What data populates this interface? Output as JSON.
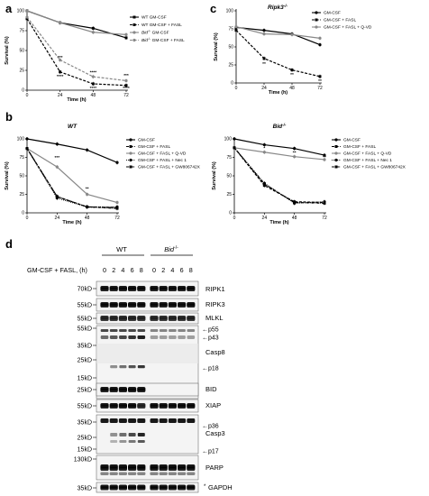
{
  "panels": {
    "a": {
      "letter": "a"
    },
    "b": {
      "letter": "b",
      "left_title": "WT",
      "right_title": "Bid"
    },
    "c": {
      "letter": "c",
      "title": "Ripk3"
    },
    "d": {
      "letter": "d"
    }
  },
  "chart_data": [
    {
      "panel": "a",
      "type": "line",
      "title": "",
      "xlabel": "Time (h)",
      "ylabel": "Survival (%)",
      "xlim": [
        0,
        72
      ],
      "ylim": [
        0,
        100
      ],
      "x_ticks": [
        0,
        24,
        48,
        72
      ],
      "y_ticks": [
        0,
        25,
        50,
        75,
        100
      ],
      "legend_position": "top-right",
      "x": [
        0,
        24,
        48,
        72
      ],
      "series": [
        {
          "name": "WT GM-CSF",
          "values": [
            100,
            85,
            78,
            66
          ],
          "color": "#000000",
          "dash": "solid",
          "marker": "square"
        },
        {
          "name": "WT GM-CSF + FASL",
          "values": [
            90,
            23,
            8,
            6
          ],
          "color": "#000000",
          "dash": "dashed",
          "marker": "square"
        },
        {
          "name": "Bid GM-CSF",
          "values": [
            100,
            85,
            73,
            70
          ],
          "color": "#888888",
          "dash": "solid",
          "marker": "circle"
        },
        {
          "name": "Bid GM-CSF + FASL",
          "values": [
            92,
            38,
            17,
            12
          ],
          "color": "#888888",
          "dash": "dashed",
          "marker": "circle"
        }
      ],
      "annotations": [
        {
          "x": 24,
          "y": 40,
          "text": "***"
        },
        {
          "x": 24,
          "y": 16,
          "text": "****"
        },
        {
          "x": 48,
          "y": 21,
          "text": "****"
        },
        {
          "x": 48,
          "y": 1,
          "text": "****"
        },
        {
          "x": 72,
          "y": 17,
          "text": "***"
        },
        {
          "x": 72,
          "y": 1,
          "text": "****"
        }
      ]
    },
    {
      "panel": "b-left",
      "type": "line",
      "title": "WT",
      "xlabel": "Time (h)",
      "ylabel": "Survival (%)",
      "xlim": [
        0,
        72
      ],
      "ylim": [
        0,
        100
      ],
      "x_ticks": [
        0,
        24,
        48,
        72
      ],
      "y_ticks": [
        0,
        25,
        50,
        75,
        100
      ],
      "legend_position": "right",
      "x": [
        0,
        24,
        48,
        72
      ],
      "series": [
        {
          "name": "GM-CSF",
          "values": [
            100,
            93,
            85,
            68
          ],
          "color": "#000000",
          "dash": "solid",
          "marker": "circle"
        },
        {
          "name": "GM-CSF + FASL",
          "values": [
            87,
            22,
            8,
            7
          ],
          "color": "#000000",
          "dash": "dashed",
          "marker": "square"
        },
        {
          "name": "GM-CSF + FASL + Q-VD",
          "values": [
            87,
            62,
            25,
            14
          ],
          "color": "#888888",
          "dash": "solid",
          "marker": "circle"
        },
        {
          "name": "GM-CSF + FASL + Nec 1",
          "values": [
            87,
            20,
            8,
            8
          ],
          "color": "#000000",
          "dash": "dotted",
          "marker": "circle"
        },
        {
          "name": "GM-CSF + FASL + GW806742X",
          "values": [
            87,
            22,
            8,
            6
          ],
          "color": "#000000",
          "dash": "dashdot",
          "marker": "square"
        }
      ],
      "annotations": [
        {
          "x": 24,
          "y": 73,
          "text": "***"
        },
        {
          "x": 48,
          "y": 31,
          "text": "**"
        }
      ]
    },
    {
      "panel": "b-right",
      "type": "line",
      "title": "Bid",
      "xlabel": "Time (h)",
      "ylabel": "Survival (%)",
      "xlim": [
        0,
        72
      ],
      "ylim": [
        0,
        100
      ],
      "x_ticks": [
        0,
        24,
        48,
        72
      ],
      "y_ticks": [
        0,
        25,
        50,
        75,
        100
      ],
      "legend_position": "right",
      "x": [
        0,
        24,
        48,
        72
      ],
      "series": [
        {
          "name": "GM-CSF",
          "values": [
            100,
            92,
            87,
            78
          ],
          "color": "#000000",
          "dash": "solid",
          "marker": "circle"
        },
        {
          "name": "GM-CSF + FASL",
          "values": [
            88,
            37,
            15,
            14
          ],
          "color": "#000000",
          "dash": "dashed",
          "marker": "square"
        },
        {
          "name": "GM-CSF + FASL + Q-VD",
          "values": [
            88,
            82,
            76,
            72
          ],
          "color": "#888888",
          "dash": "solid",
          "marker": "circle"
        },
        {
          "name": "GM-CSF + FASL + Nec 1",
          "values": [
            88,
            40,
            13,
            15
          ],
          "color": "#000000",
          "dash": "dotted",
          "marker": "circle"
        },
        {
          "name": "GM-CSF + FASL + GW806742X",
          "values": [
            88,
            39,
            14,
            13
          ],
          "color": "#000000",
          "dash": "dashdot",
          "marker": "square"
        }
      ],
      "annotations": [
        {
          "x": 24,
          "y": 86,
          "text": "*"
        },
        {
          "x": 48,
          "y": 80,
          "text": "**"
        },
        {
          "x": 72,
          "y": 74,
          "text": "**"
        }
      ]
    },
    {
      "panel": "c",
      "type": "line",
      "title": "Ripk3",
      "xlabel": "Time (h)",
      "ylabel": "Survival (%)",
      "xlim": [
        0,
        72
      ],
      "ylim": [
        0,
        100
      ],
      "x_ticks": [
        0,
        24,
        48,
        72
      ],
      "y_ticks": [
        0,
        25,
        50,
        75,
        100
      ],
      "legend_position": "top-right",
      "x": [
        0,
        24,
        48,
        72
      ],
      "series": [
        {
          "name": "GM-CSF",
          "values": [
            77,
            73,
            68,
            53
          ],
          "color": "#000000",
          "dash": "solid",
          "marker": "circle"
        },
        {
          "name": "GM-CSF + FASL",
          "values": [
            73,
            34,
            18,
            9
          ],
          "color": "#000000",
          "dash": "dashed",
          "marker": "square"
        },
        {
          "name": "GM-CSF + FASL + Q-VD",
          "values": [
            78,
            68,
            67,
            62
          ],
          "color": "#888888",
          "dash": "solid",
          "marker": "circle"
        }
      ],
      "annotations": [
        {
          "x": 24,
          "y": 25,
          "text": "**"
        },
        {
          "x": 48,
          "y": 10,
          "text": "**"
        },
        {
          "x": 72,
          "y": 1,
          "text": "**"
        }
      ]
    }
  ],
  "blot": {
    "treatment_label": "GM-CSF + FASL, (h)",
    "group_wt": "WT",
    "group_bid": "Bid",
    "lanes": [
      "0",
      "2",
      "4",
      "6",
      "8",
      "0",
      "2",
      "4",
      "6",
      "8"
    ],
    "mw_markers": [
      {
        "text": "70kD"
      },
      {
        "text": "55kD"
      },
      {
        "text": "55kD"
      },
      {
        "text": "55kD"
      },
      {
        "text": "35kD"
      },
      {
        "text": "25kD"
      },
      {
        "text": "15kD"
      },
      {
        "text": "25kD"
      },
      {
        "text": "55kD"
      },
      {
        "text": "35kD"
      },
      {
        "text": "25kD"
      },
      {
        "text": "15kD"
      },
      {
        "text": "130kD"
      },
      {
        "text": "35kD"
      }
    ],
    "protein_labels": [
      {
        "text": "RIPK1"
      },
      {
        "text": "RIPK3"
      },
      {
        "text": "MLKL"
      },
      {
        "text": "Casp8"
      },
      {
        "text": "BID"
      },
      {
        "text": "XIAP"
      },
      {
        "text": "Casp3"
      },
      {
        "text": "PARP"
      },
      {
        "text": "GAPDH"
      }
    ],
    "band_labels": [
      {
        "text": "←p55"
      },
      {
        "text": "←p43"
      },
      {
        "text": "←p18"
      },
      {
        "text": "←p36"
      },
      {
        "text": "←p17"
      }
    ],
    "gapdh_marker": "*"
  }
}
